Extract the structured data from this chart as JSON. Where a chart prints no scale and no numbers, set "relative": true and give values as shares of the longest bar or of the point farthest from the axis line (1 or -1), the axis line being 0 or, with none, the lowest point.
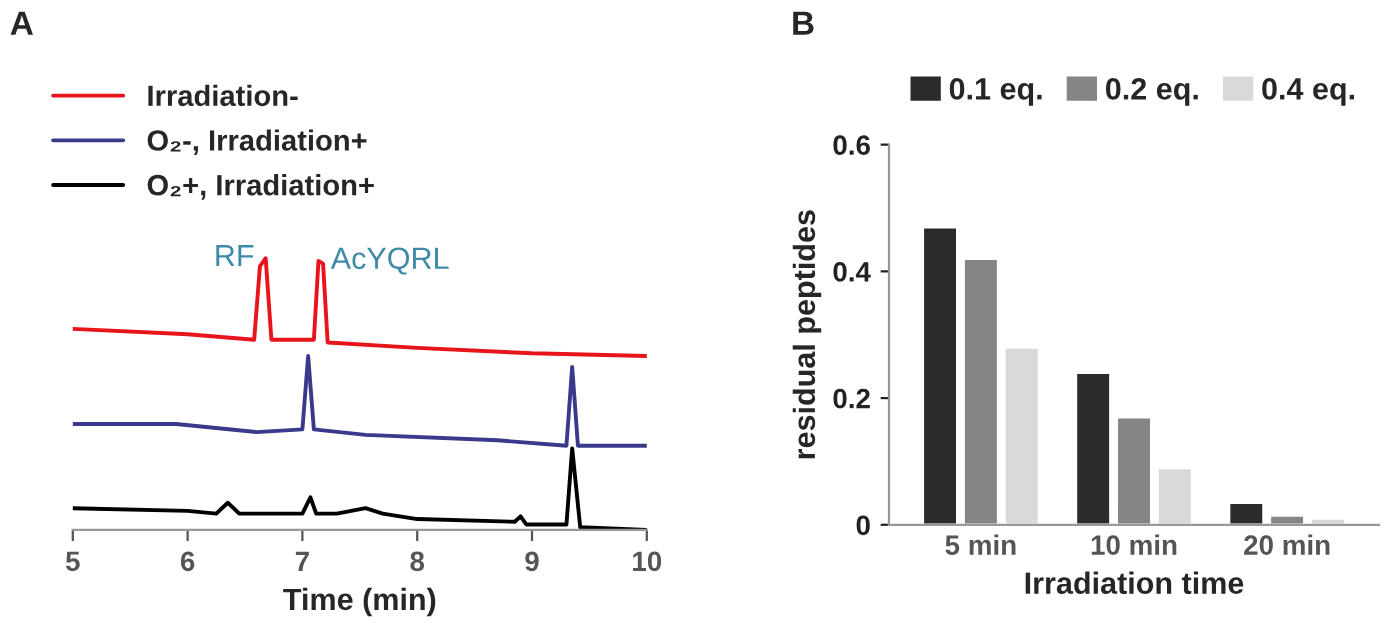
{
  "chart_data": [
    {
      "type": "line",
      "title": "A",
      "relative": true,
      "xlabel": "Time (min)",
      "xlim": [
        5,
        10
      ],
      "xticks": [
        5,
        6,
        7,
        8,
        9,
        10
      ],
      "tick_labels": "x",
      "legend": "top left",
      "grid": false,
      "series": [
        {
          "name": "Irradiation-",
          "color": "#e8141c",
          "x": [
            5,
            6,
            6.58,
            6.63,
            6.68,
            6.73,
            7.1,
            7.14,
            7.18,
            7.22,
            8,
            9,
            10
          ],
          "values": [
            0.74,
            0.72,
            0.7,
            0.97,
            1.0,
            0.7,
            0.7,
            0.99,
            0.98,
            0.69,
            0.67,
            0.65,
            0.64
          ]
        },
        {
          "name": "O₂-, Irradiation+",
          "color": "#3a3a8c",
          "x": [
            5,
            5.9,
            6.6,
            7.0,
            7.05,
            7.1,
            7.55,
            8.7,
            9.3,
            9.35,
            9.4,
            10
          ],
          "values": [
            0.39,
            0.39,
            0.36,
            0.37,
            0.64,
            0.37,
            0.35,
            0.33,
            0.31,
            0.6,
            0.31,
            0.31
          ]
        },
        {
          "name": "O₂+, Irradiation+",
          "color": "#000000",
          "x": [
            5,
            6,
            6.25,
            6.35,
            6.45,
            7.0,
            7.07,
            7.12,
            7.3,
            7.55,
            7.7,
            8.0,
            8.85,
            8.9,
            8.95,
            9.3,
            9.35,
            9.42,
            10
          ],
          "values": [
            0.08,
            0.07,
            0.06,
            0.1,
            0.06,
            0.06,
            0.12,
            0.06,
            0.06,
            0.08,
            0.06,
            0.04,
            0.03,
            0.05,
            0.02,
            0.02,
            0.3,
            0.01,
            0.0
          ]
        }
      ],
      "annotations": [
        {
          "text": "RF",
          "x": 6.68,
          "y": 1.0
        },
        {
          "text": "AcYQRL",
          "x": 7.15,
          "y": 0.99
        }
      ]
    },
    {
      "type": "bar",
      "title": "B",
      "xlabel": "Irradiation time",
      "ylabel": "residual peptides",
      "categories": [
        "5 min",
        "10 min",
        "20 min"
      ],
      "ylim": [
        0,
        0.6
      ],
      "yticks": [
        0,
        0.2,
        0.4,
        0.6
      ],
      "legend": "top",
      "grid": false,
      "series": [
        {
          "name": "0.1 eq.",
          "color": "#2b2b2b",
          "values": [
            0.47,
            0.24,
            0.035
          ]
        },
        {
          "name": "0.2 eq.",
          "color": "#858585",
          "values": [
            0.42,
            0.17,
            0.015
          ]
        },
        {
          "name": "0.4 eq.",
          "color": "#d9d9d9",
          "values": [
            0.28,
            0.09,
            0.01
          ]
        }
      ]
    }
  ]
}
